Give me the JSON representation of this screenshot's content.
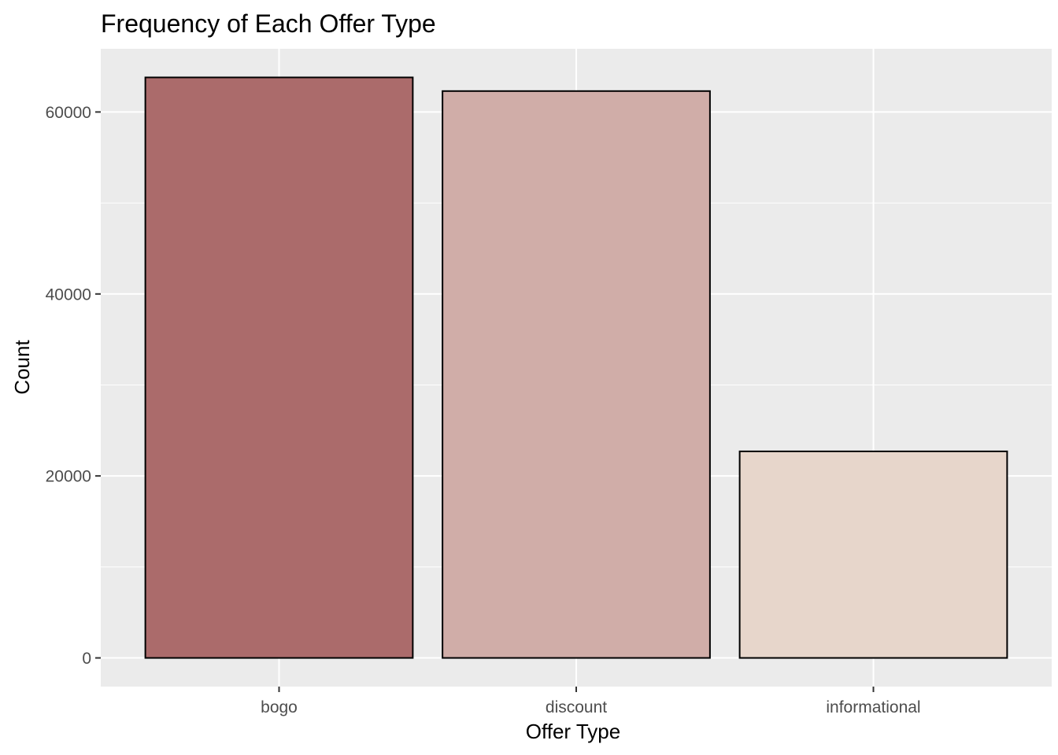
{
  "chart_data": {
    "type": "bar",
    "title": "Frequency of Each Offer Type",
    "xlabel": "Offer Type",
    "ylabel": "Count",
    "categories": [
      "bogo",
      "discount",
      "informational"
    ],
    "values": [
      63800,
      62300,
      22700
    ],
    "colors": [
      "#AB6B6B",
      "#D0ADA8",
      "#E7D6CB"
    ],
    "bar_outline": "#000000",
    "panel_background": "#EBEBEB",
    "grid_color": "#FFFFFF",
    "grid": true,
    "legend": "none",
    "ylim": [
      -3150,
      66950
    ],
    "yticks": [
      0,
      20000,
      40000,
      60000
    ],
    "ytick_labels": [
      "0",
      "20000",
      "40000",
      "60000"
    ]
  }
}
